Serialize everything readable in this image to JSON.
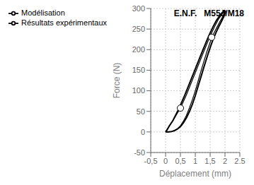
{
  "chart_data": {
    "type": "line",
    "title": "",
    "xlabel": "Déplacement  (mm)",
    "ylabel": "Force (N)",
    "annotation": "E.N.F.   M55J/M18",
    "xlim": [
      -0.5,
      2.5
    ],
    "ylim": [
      -50,
      300
    ],
    "xticks": [
      {
        "value": -0.5,
        "label": "-0,5"
      },
      0,
      {
        "value": 0.5,
        "label": "0,5"
      },
      1,
      {
        "value": 1.5,
        "label": "1,5"
      },
      2,
      2.5
    ],
    "yticks": [
      -50,
      0,
      50,
      100,
      150,
      200,
      250,
      300
    ],
    "grid": true,
    "legend": "top left",
    "series": [
      {
        "name": "Résultats  expérimentaux",
        "color": "#000000",
        "line_style": "solid",
        "x": [
          0.0,
          0.05,
          0.12,
          0.25,
          0.45,
          0.65,
          0.85,
          1.05,
          1.25,
          1.45,
          1.6,
          1.72,
          1.82,
          1.88,
          1.92,
          1.95,
          1.97,
          1.98,
          1.99,
          2.0,
          2.0,
          2.01,
          2.02,
          2.0,
          1.97,
          1.93,
          1.87,
          1.8,
          1.7,
          1.6,
          1.5,
          1.4,
          1.3,
          1.2,
          1.1,
          1.0,
          0.9,
          0.8,
          0.7,
          0.6,
          0.5,
          0.4,
          0.3,
          0.2,
          0.1,
          0.05,
          0.0
        ],
        "values": [
          0,
          5,
          14,
          28,
          57,
          90,
          126,
          162,
          198,
          233,
          256,
          272,
          282,
          288,
          291,
          293,
          294,
          294,
          293,
          290,
          290,
          293,
          292,
          288,
          282,
          276,
          267,
          257,
          242,
          225,
          205,
          183,
          160,
          136,
          112,
          88,
          67,
          49,
          34,
          22,
          13,
          7,
          3,
          1,
          0,
          0,
          0
        ]
      },
      {
        "name": "Modélisation",
        "color": "#000000",
        "line_style": "solid",
        "marker": "circle",
        "x": [
          0.0,
          0.1,
          0.3,
          0.5,
          0.7,
          0.9,
          1.1,
          1.3,
          1.5,
          1.65,
          1.78,
          1.88,
          1.95,
          2.0,
          2.0,
          1.98,
          1.95,
          1.9,
          1.82,
          1.72,
          1.6,
          1.5,
          1.4,
          1.3,
          1.2,
          1.1,
          1.0,
          0.9,
          0.8,
          0.7,
          0.6,
          0.5,
          0.4,
          0.3,
          0.2,
          0.1,
          0.0
        ],
        "values": [
          0,
          12,
          34,
          58,
          90,
          126,
          162,
          198,
          233,
          256,
          274,
          284,
          291,
          293,
          293,
          290,
          285,
          277,
          267,
          253,
          236,
          218,
          197,
          174,
          150,
          125,
          100,
          78,
          58,
          40,
          26,
          15,
          8,
          4,
          1,
          0,
          0
        ],
        "marker_x": [
          0.5,
          1.55
        ],
        "marker_values": [
          58,
          230
        ]
      }
    ]
  }
}
